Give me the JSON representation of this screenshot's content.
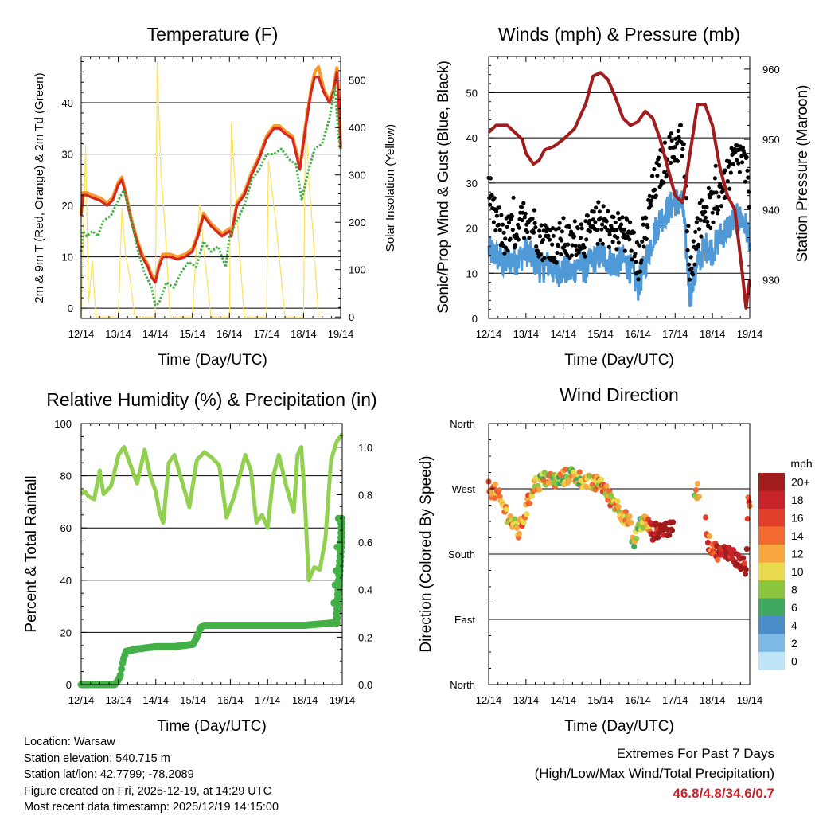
{
  "panels": {
    "temperature": {
      "title": "Temperature (F)",
      "xlabel": "Time (Day/UTC)",
      "ylabel_left": "2m & 9m T (Red, Orange) & 2m Td (Green)",
      "ylabel_right": "Solar Insolation (Yellow)"
    },
    "winds": {
      "title": "Winds (mph) & Pressure (mb)",
      "xlabel": "Time (Day/UTC)",
      "ylabel_left": "Sonic/Prop Wind & Gust (Blue, Black)",
      "ylabel_right": "Station Pressure (Maroon)"
    },
    "humidity": {
      "title": "Relative Humidity (%) & Precipitation (in)",
      "xlabel": "Time (Day/UTC)",
      "ylabel_left": "Percent & Total Rainfall"
    },
    "direction": {
      "title": "Wind Direction",
      "xlabel": "Time (Day/UTC)",
      "ylabel_left": "Direction (Colored By Speed)"
    }
  },
  "colors": {
    "temp2m": "#d7261e",
    "temp9m": "#f79a2b",
    "dewpoint": "#43b047",
    "solar": "#fbe25a",
    "wind": "#4f9ad6",
    "gust": "#000000",
    "pressure": "#a11c1c",
    "rh": "#92d050",
    "precip": "#43b047",
    "grid": "#000000"
  },
  "legend": {
    "unit": "mph",
    "labels": [
      "20+",
      "18",
      "16",
      "14",
      "12",
      "10",
      "8",
      "6",
      "4",
      "2",
      "0"
    ],
    "colors": [
      "#a11c1c",
      "#c8232a",
      "#e0402a",
      "#f26a31",
      "#f9a741",
      "#e9da4e",
      "#8cc63f",
      "#41a85f",
      "#4a8dc8",
      "#7fb9e5",
      "#bfe3f7"
    ]
  },
  "info": {
    "location": "Location: Warsaw",
    "elevation": "Station elevation: 540.715 m",
    "latlon": "Station lat/lon: 42.7799; -78.2089",
    "created": "Figure created on Fri, 2025-12-19, at 14:29 UTC",
    "recent": "Most recent data timestamp: 2025/12/19 14:15:00"
  },
  "extremes": {
    "title": "Extremes For Past 7 Days",
    "subtitle": "(High/Low/Max Wind/Total Precipitation)",
    "values": "46.8/4.8/34.6/0.7"
  },
  "chart_data": [
    {
      "type": "line",
      "title": "Temperature (F)",
      "xlabel": "Time (Day/UTC)",
      "ylabel": "2m & 9m T (Red, Orange) & 2m Td (Green)",
      "y2label": "Solar Insolation (Yellow)",
      "xticks": [
        "12/14",
        "13/14",
        "14/14",
        "15/14",
        "16/14",
        "17/14",
        "18/14",
        "19/14"
      ],
      "xlim": [
        0,
        7
      ],
      "ylim": [
        -2,
        49
      ],
      "yticks": [
        0,
        10,
        20,
        30,
        40
      ],
      "y2lim": [
        -3,
        550
      ],
      "y2ticks": [
        0,
        100,
        200,
        300,
        400,
        500
      ],
      "series": [
        {
          "name": "2m T",
          "x": [
            0,
            0.05,
            0.15,
            0.3,
            0.5,
            0.7,
            0.85,
            1.0,
            1.1,
            1.2,
            1.35,
            1.5,
            1.65,
            1.8,
            1.9,
            2.0,
            2.1,
            2.2,
            2.4,
            2.6,
            2.8,
            3.0,
            3.15,
            3.3,
            3.5,
            3.65,
            3.8,
            4.0,
            4.05,
            4.2,
            4.4,
            4.6,
            4.8,
            5.0,
            5.2,
            5.35,
            5.5,
            5.7,
            5.9,
            6.05,
            6.2,
            6.3,
            6.4,
            6.55,
            6.7,
            6.8,
            6.9,
            6.95,
            7.0
          ],
          "y": [
            18,
            22,
            22,
            21.5,
            21,
            20,
            21,
            24,
            25,
            22,
            17,
            13,
            10,
            8,
            6,
            5,
            8,
            10,
            10,
            9.5,
            10,
            11,
            14,
            18,
            16,
            15,
            14,
            15,
            14,
            20,
            22,
            26,
            29,
            33,
            35,
            35,
            34,
            33,
            27,
            35,
            42,
            45,
            45,
            42,
            40,
            42,
            46,
            40,
            31
          ]
        },
        {
          "name": "9m T",
          "x": [
            0,
            0.05,
            0.15,
            0.3,
            0.5,
            0.7,
            0.85,
            1.0,
            1.1,
            1.2,
            1.35,
            1.5,
            1.65,
            1.8,
            1.9,
            2.0,
            2.1,
            2.2,
            2.4,
            2.6,
            2.8,
            3.0,
            3.15,
            3.3,
            3.5,
            3.65,
            3.8,
            4.0,
            4.05,
            4.2,
            4.4,
            4.6,
            4.8,
            5.0,
            5.2,
            5.35,
            5.5,
            5.7,
            5.9,
            6.05,
            6.2,
            6.3,
            6.4,
            6.55,
            6.7,
            6.8,
            6.9,
            6.95,
            7.0
          ],
          "y": [
            18.5,
            22.5,
            22.5,
            22,
            21.5,
            20.5,
            21.5,
            24.5,
            25.5,
            22.5,
            17.5,
            13.5,
            10.5,
            8.5,
            6.5,
            5.5,
            8.5,
            10.5,
            10.5,
            10,
            10.5,
            11.5,
            14.5,
            18.5,
            16.5,
            15.5,
            14.5,
            15.5,
            14.5,
            20.5,
            22.5,
            26.5,
            29.5,
            33.5,
            35.5,
            35.5,
            34.5,
            33.5,
            27.5,
            35.5,
            42.5,
            46,
            47,
            42.5,
            40.5,
            42.5,
            46.8,
            40.5,
            31.5
          ]
        },
        {
          "name": "2m Td",
          "x": [
            0,
            0.05,
            0.15,
            0.3,
            0.45,
            0.6,
            0.8,
            1.0,
            1.15,
            1.3,
            1.5,
            1.7,
            1.9,
            2.0,
            2.1,
            2.3,
            2.5,
            2.7,
            2.9,
            3.1,
            3.3,
            3.5,
            3.7,
            3.9,
            4.0,
            4.2,
            4.4,
            4.6,
            4.8,
            5.0,
            5.2,
            5.4,
            5.6,
            5.8,
            5.95,
            6.1,
            6.3,
            6.5,
            6.7,
            6.85,
            6.95,
            7.0
          ],
          "y": [
            11,
            15,
            14,
            15,
            14,
            17,
            18,
            21,
            23,
            19,
            12,
            7,
            4,
            0.5,
            1,
            5,
            4,
            7,
            9,
            8,
            13,
            11,
            12,
            8,
            14,
            17,
            20,
            25,
            27,
            30,
            30,
            31,
            29,
            28,
            21,
            26,
            31,
            32,
            37,
            43,
            33,
            31
          ]
        },
        {
          "name": "Solar Insolation",
          "axis": "y2",
          "x": [
            0,
            0.12,
            0.2,
            0.3,
            0.4,
            1.0,
            1.1,
            1.2,
            1.3,
            1.45,
            2.0,
            2.05,
            2.15,
            2.25,
            2.4,
            3.0,
            3.1,
            3.2,
            3.3,
            3.5,
            4.0,
            4.05,
            4.15,
            4.25,
            4.4,
            5.0,
            5.05,
            5.1,
            5.25,
            5.5,
            6.0,
            6.05,
            6.15,
            6.25,
            6.4
          ],
          "y": [
            0,
            360,
            30,
            120,
            0,
            0,
            230,
            130,
            90,
            0,
            0,
            540,
            310,
            200,
            0,
            0,
            140,
            240,
            150,
            0,
            0,
            410,
            280,
            160,
            0,
            0,
            330,
            300,
            200,
            0,
            0,
            440,
            280,
            180,
            0
          ]
        }
      ]
    },
    {
      "type": "line",
      "title": "Winds (mph) & Pressure (mb)",
      "xlabel": "Time (Day/UTC)",
      "ylabel": "Sonic/Prop Wind & Gust (Blue, Black)",
      "y2label": "Station Pressure (Maroon)",
      "xticks": [
        "12/14",
        "13/14",
        "14/14",
        "15/14",
        "16/14",
        "17/14",
        "18/14",
        "19/14"
      ],
      "xlim": [
        0,
        7
      ],
      "ylim": [
        0,
        58
      ],
      "yticks": [
        0,
        10,
        20,
        30,
        40,
        50
      ],
      "y2lim": [
        924.5,
        961.8
      ],
      "y2ticks": [
        930,
        940,
        950,
        960
      ],
      "series": [
        {
          "name": "Wind",
          "x": [
            0,
            0.2,
            0.4,
            0.6,
            0.8,
            1.0,
            1.2,
            1.4,
            1.6,
            1.8,
            2.0,
            2.2,
            2.4,
            2.6,
            2.8,
            3.0,
            3.2,
            3.4,
            3.6,
            3.8,
            4.0,
            4.2,
            4.4,
            4.6,
            4.8,
            5.0,
            5.2,
            5.4,
            5.6,
            5.8,
            6.0,
            6.2,
            6.4,
            6.6,
            6.8,
            7.0
          ],
          "y": [
            15,
            14,
            12,
            13,
            13,
            15,
            13,
            11,
            12,
            10,
            11,
            10,
            12,
            11,
            13,
            14,
            13,
            12,
            13,
            11,
            7,
            12,
            18,
            22,
            24,
            26,
            25,
            5,
            12,
            16,
            15,
            18,
            20,
            22,
            22,
            18
          ]
        },
        {
          "name": "Gust",
          "x": [
            0,
            0.2,
            0.4,
            0.6,
            0.8,
            1.0,
            1.2,
            1.4,
            1.6,
            1.8,
            2.0,
            2.2,
            2.4,
            2.6,
            2.8,
            3.0,
            3.2,
            3.4,
            3.6,
            3.8,
            4.0,
            4.2,
            4.4,
            4.6,
            4.8,
            5.0,
            5.2,
            5.4,
            5.6,
            5.8,
            6.0,
            6.2,
            6.4,
            6.6,
            6.8,
            7.0
          ],
          "y": [
            24,
            22,
            18,
            19,
            20,
            23,
            21,
            17,
            18,
            16,
            18,
            16,
            19,
            18,
            20,
            21,
            20,
            19,
            20,
            18,
            12,
            19,
            28,
            33,
            36,
            38,
            40,
            10,
            20,
            25,
            24,
            28,
            31,
            35,
            36,
            28
          ]
        },
        {
          "name": "Station Pressure",
          "axis": "y2",
          "x": [
            0,
            0.2,
            0.5,
            0.7,
            0.9,
            1.0,
            1.2,
            1.35,
            1.5,
            1.75,
            2.0,
            2.3,
            2.6,
            2.8,
            3.0,
            3.2,
            3.4,
            3.6,
            3.8,
            4.0,
            4.2,
            4.4,
            4.6,
            4.8,
            5.0,
            5.2,
            5.4,
            5.6,
            5.8,
            6.0,
            6.2,
            6.4,
            6.6,
            6.8,
            6.9,
            7.0
          ],
          "y": [
            951,
            952,
            952,
            951,
            950,
            948,
            946.5,
            947,
            948.5,
            949,
            950,
            951.5,
            955,
            959,
            959.5,
            958.5,
            956,
            953,
            952,
            952.5,
            954,
            953,
            950,
            946,
            942,
            941,
            948,
            955,
            955,
            952,
            946,
            942,
            940,
            931,
            926,
            930
          ]
        }
      ]
    },
    {
      "type": "line",
      "title": "Relative Humidity (%) & Precipitation (in)",
      "xlabel": "Time (Day/UTC)",
      "ylabel": "Percent & Total Rainfall",
      "xticks": [
        "12/14",
        "13/14",
        "14/14",
        "15/14",
        "16/14",
        "17/14",
        "18/14",
        "19/14"
      ],
      "xlim": [
        0,
        7
      ],
      "ylim": [
        0,
        100
      ],
      "yticks": [
        0,
        20,
        40,
        60,
        80,
        100
      ],
      "y2lim": [
        0,
        1.1
      ],
      "y2ticks": [
        0.0,
        0.2,
        0.4,
        0.6,
        0.8,
        1.0
      ],
      "series": [
        {
          "name": "Relative Humidity",
          "x": [
            0,
            0.1,
            0.2,
            0.35,
            0.5,
            0.6,
            0.8,
            1.0,
            1.15,
            1.3,
            1.5,
            1.7,
            1.85,
            2.0,
            2.1,
            2.2,
            2.35,
            2.5,
            2.7,
            2.9,
            3.1,
            3.3,
            3.5,
            3.7,
            3.9,
            4.1,
            4.25,
            4.4,
            4.55,
            4.7,
            4.85,
            5.0,
            5.15,
            5.3,
            5.5,
            5.7,
            5.8,
            5.9,
            6.0,
            6.1,
            6.25,
            6.4,
            6.55,
            6.7,
            6.85,
            7.0
          ],
          "y": [
            73,
            74,
            72,
            71,
            82,
            73,
            76,
            88,
            91,
            85,
            77,
            90,
            80,
            74,
            66,
            62,
            85,
            88,
            78,
            68,
            86,
            89,
            87,
            84,
            64,
            72,
            80,
            88,
            82,
            62,
            65,
            60,
            80,
            88,
            76,
            66,
            88,
            91,
            70,
            40,
            45,
            44,
            56,
            86,
            93,
            96
          ]
        },
        {
          "name": "Precipitation",
          "axis": "y2",
          "x": [
            0,
            0.5,
            0.9,
            1.0,
            1.05,
            1.12,
            1.2,
            1.5,
            2.0,
            2.5,
            3.0,
            3.1,
            3.2,
            3.3,
            3.5,
            4.0,
            5.0,
            6.0,
            6.75,
            6.8,
            6.85,
            6.9,
            7.0
          ],
          "y": [
            0,
            0,
            0,
            0.02,
            0.04,
            0.1,
            0.14,
            0.15,
            0.16,
            0.16,
            0.17,
            0.2,
            0.24,
            0.25,
            0.25,
            0.25,
            0.25,
            0.25,
            0.26,
            0.4,
            0.5,
            0.7,
            0.7
          ]
        }
      ]
    },
    {
      "type": "scatter",
      "title": "Wind Direction",
      "xlabel": "Time (Day/UTC)",
      "ylabel": "Direction (Colored By Speed)",
      "xticks": [
        "12/14",
        "13/14",
        "14/14",
        "15/14",
        "16/14",
        "17/14",
        "18/14",
        "19/14"
      ],
      "yticks": [
        "North",
        "East",
        "South",
        "West",
        "North"
      ],
      "xlim": [
        0,
        7
      ],
      "ylim": [
        0,
        360
      ],
      "colorbar": {
        "unit": "mph",
        "levels": [
          "0",
          "2",
          "4",
          "6",
          "8",
          "10",
          "12",
          "14",
          "16",
          "18",
          "20+"
        ]
      },
      "series": [
        {
          "name": "Direction (deg)",
          "x": [
            0,
            0.2,
            0.4,
            0.6,
            0.8,
            1.0,
            1.2,
            1.4,
            1.6,
            1.8,
            2.0,
            2.2,
            2.4,
            2.6,
            2.8,
            3.0,
            3.2,
            3.4,
            3.6,
            3.8,
            3.9,
            4.0,
            4.2,
            4.4,
            4.6,
            4.8,
            4.9,
            5.5,
            5.6,
            5.7,
            5.8,
            5.9,
            6.0,
            6.1,
            6.2,
            6.4,
            6.6,
            6.8,
            6.9,
            6.95,
            7.0
          ],
          "y": [
            270,
            265,
            245,
            225,
            210,
            240,
            275,
            280,
            285,
            280,
            285,
            290,
            285,
            280,
            275,
            280,
            260,
            250,
            235,
            220,
            190,
            220,
            225,
            210,
            215,
            215,
            212,
            265,
            268,
            270,
            230,
            195,
            190,
            185,
            180,
            185,
            175,
            165,
            160,
            250,
            240
          ]
        }
      ]
    }
  ]
}
